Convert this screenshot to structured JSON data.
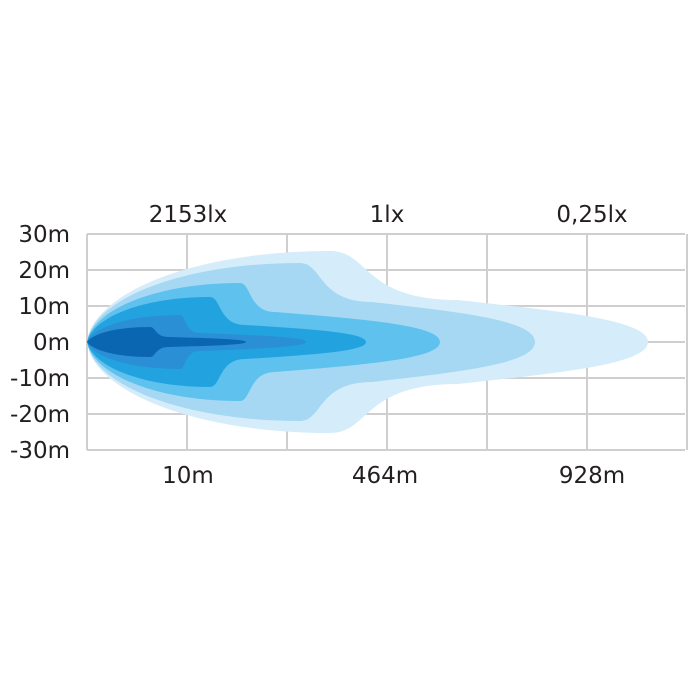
{
  "chart_data": {
    "type": "area",
    "title": "",
    "top_labels": [
      "2153lx",
      "1lx",
      "0,25lx"
    ],
    "x_tick_labels": [
      "10m",
      "464m",
      "928m"
    ],
    "y_tick_labels": [
      "30m",
      "20m",
      "10m",
      "0m",
      "-10m",
      "-20m",
      "-30m"
    ],
    "ylim": [
      -30,
      30
    ],
    "grid": true,
    "contour_colors": [
      "#d5edfa",
      "#a6d8f4",
      "#5fc1ee",
      "#22a3df",
      "#2b8fd6",
      "#0a66b0"
    ]
  }
}
